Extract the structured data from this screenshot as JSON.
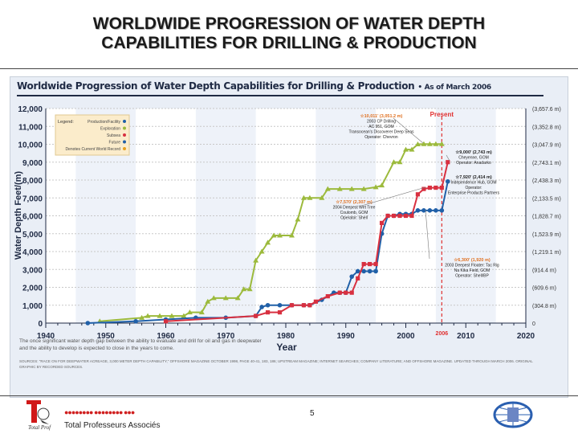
{
  "slide": {
    "title_line1": "WORLDWIDE PROGRESSION OF WATER DEPTH",
    "title_line2": "CAPABILITIES FOR DRILLING & PRODUCTION",
    "company": "Total Professeurs Associés",
    "page_number": "5",
    "logo_text": "Total Prof",
    "dots": "●●●●●●●● ●●●●●●●● ●●●"
  },
  "chart_data": {
    "type": "line",
    "title": "Worldwide Progression of Water Depth Capabilities for Drilling & Production",
    "subtitle": "• As of March 2006",
    "xlabel": "Year",
    "ylabel": "Water Depth Feet/(m)",
    "xlim": [
      1940,
      2020
    ],
    "ylim": [
      0,
      12000
    ],
    "x_ticks": [
      "1940",
      "1950",
      "1960",
      "1970",
      "1980",
      "1990",
      "2000",
      "2010",
      "2020"
    ],
    "y_ticks": [
      "0",
      "1,000",
      "2,000",
      "3,000",
      "4,000",
      "5,000",
      "6,000",
      "7,000",
      "8,000",
      "9,000",
      "10,000",
      "11,000",
      "12,000"
    ],
    "y2_ticks": [
      "0",
      "(304.8 m)",
      "(609.6 m)",
      "(914.4 m)",
      "(1,219.1 m)",
      "(1,523.9 m)",
      "(1,828.7 m)",
      "(2,133.5 m)",
      "(2,438.3 m)",
      "(2,743.1 m)",
      "(3,047.9 m)",
      "(3,352.8 m)",
      "(3,657.6 m)"
    ],
    "present_year": 2006,
    "present_label": "Present",
    "present_tick": "2006",
    "grid": true,
    "legend_position": "top-left",
    "legend": {
      "title": "Legend:",
      "entries": [
        "Production/Facility",
        "Exploration",
        "Subsea",
        "Future",
        "Denotes Current World Record"
      ]
    },
    "series": [
      {
        "name": "Exploration",
        "color": "#9cba3c",
        "marker": "triangle",
        "x": [
          1949,
          1956,
          1957,
          1959,
          1961,
          1963,
          1964,
          1966,
          1967,
          1968,
          1970,
          1972,
          1973,
          1974,
          1975,
          1976,
          1977,
          1978,
          1979,
          1981,
          1982,
          1983,
          1984,
          1986,
          1987,
          1989,
          1991,
          1993,
          1995,
          1996,
          1998,
          1999,
          2000,
          2001,
          2002,
          2003,
          2004,
          2005,
          2006
        ],
        "y": [
          100,
          300,
          400,
          400,
          400,
          400,
          600,
          600,
          1200,
          1400,
          1400,
          1400,
          1900,
          1900,
          3500,
          4000,
          4500,
          4900,
          4900,
          4900,
          5800,
          7000,
          7000,
          7000,
          7500,
          7500,
          7500,
          7500,
          7600,
          7700,
          9000,
          9000,
          9700,
          9700,
          10000,
          10011,
          10011,
          10011,
          10011
        ]
      },
      {
        "name": "Production/Facility",
        "color": "#2060a8",
        "marker": "circle",
        "x": [
          1947,
          1955,
          1960,
          1965,
          1970,
          1975,
          1976,
          1977,
          1979,
          1981,
          1983,
          1984,
          1986,
          1988,
          1989,
          1990,
          1991,
          1992,
          1993,
          1994,
          1995,
          1996,
          1997,
          1998,
          1999,
          2000,
          2001,
          2002,
          2003,
          2004,
          2005,
          2006,
          2007
        ],
        "y": [
          0,
          100,
          200,
          300,
          300,
          400,
          900,
          1000,
          1000,
          1000,
          1000,
          1000,
          1300,
          1700,
          1700,
          1700,
          2600,
          2900,
          2900,
          2900,
          2900,
          5000,
          6000,
          6000,
          6100,
          6100,
          6100,
          6300,
          6300,
          6300,
          6300,
          6300,
          7920
        ]
      },
      {
        "name": "Subsea",
        "color": "#d83040",
        "marker": "square",
        "x": [
          1960,
          1975,
          1977,
          1979,
          1981,
          1983,
          1984,
          1985,
          1987,
          1989,
          1990,
          1991,
          1992,
          1993,
          1994,
          1995,
          1996,
          1997,
          1998,
          1999,
          2000,
          2001,
          2002,
          2003,
          2004,
          2005,
          2006,
          2007
        ],
        "y": [
          100,
          400,
          600,
          600,
          1000,
          1000,
          1000,
          1200,
          1500,
          1700,
          1700,
          1700,
          2500,
          3300,
          3300,
          3300,
          5600,
          6000,
          6000,
          6000,
          6000,
          6000,
          7200,
          7500,
          7570,
          7570,
          7570,
          9000
        ]
      }
    ],
    "annotations": [
      {
        "record": "10,011' (3,051.2 m)",
        "lines": [
          "2003 CP Drilling",
          "AC 951, GOM",
          "Transocean's Discoverer Deep Seas",
          "Operator: Chevron"
        ]
      },
      {
        "record": "9,000' (2,743 m)",
        "lines": [
          "Cheyenne, GOM",
          "Operator: Anadarko"
        ]
      },
      {
        "record": "7,920' (2,414 m)",
        "lines": [
          "Independence Hub, GOM",
          "Operator:",
          "Enterprise Products Partners"
        ]
      },
      {
        "record": "7,570' (2,307 m)",
        "lines": [
          "2004 Deepest Wet Tree",
          "Coulomb, GOM",
          "Operator: Shell"
        ]
      },
      {
        "record": "6,300' (1,920 m)",
        "lines": [
          "2003 Deepest Floater: Tac Rig",
          "Na Kika Field, GOM",
          "Operator: Shell/BP"
        ]
      }
    ],
    "footnote": "The once significant water depth gap between the ability to evaluate and drill for oil and gas in deepwater and the ability to develop is expected to close in the years to come.",
    "sources": "SOURCES: \"RACE ON FOR DEEPWATER ACREAGE, 3,000 METER DEPTH CAPABILITY,\" OFFSHORE MAGAZINE OCTOBER 1998, PAGE 40-41, 183, 186; UPSTREAM MAGAZINE; INTERNET SEARCHES; COMPANY LITERATURE; AND OFFSHORE MAGAZINE. UPDATED THROUGH MARCH 2006. ORIGINAL GRAPHIC BY RECORDED SOURCES."
  }
}
